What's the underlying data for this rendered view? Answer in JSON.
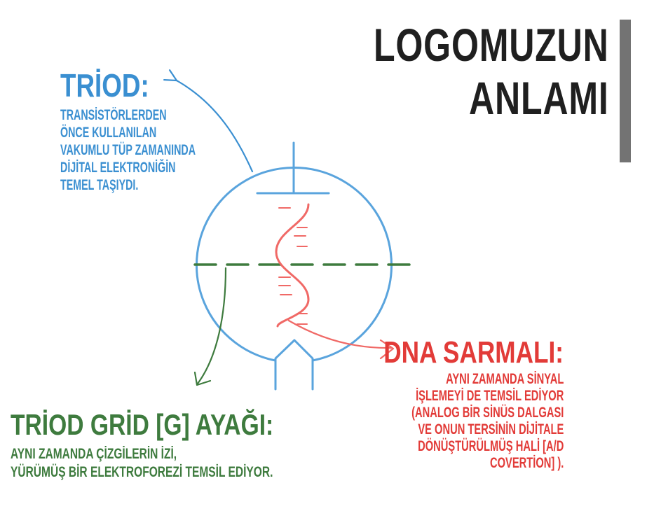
{
  "title": {
    "line1": "LOGOMUZUN",
    "line2": "ANLAMI"
  },
  "triod": {
    "heading": "TRİOD:",
    "lines": [
      "TRANSİSTÖRLERDEN",
      "ÖNCE KULLANILAN",
      "VAKUMLU TÜP ZAMANINDA",
      "DİJİTAL ELEKTRONİĞİN",
      "TEMEL TAŞIYDI."
    ]
  },
  "grid": {
    "heading": "TRİOD GRİD [G] AYAĞI:",
    "lines": [
      "AYNI ZAMANDA ÇİZGİLERİN İZİ,",
      "YÜRÜMÜŞ BİR ELEKTROFOREZİ TEMSİL EDİYOR."
    ]
  },
  "dna": {
    "heading": "DNA SARMALI:",
    "lines": [
      "AYNI ZAMANDA SİNYAL",
      "İŞLEMEYİ DE TEMSİL EDİYOR",
      "(ANALOG BİR SİNÜS DALGASI",
      "VE ONUN TERSİNİN DİJİTALE",
      "DÖNÜŞTÜRÜLMÜŞ HALİ [A/D",
      "COVERTİON] )."
    ]
  },
  "colors": {
    "blue": "#3a8fd1",
    "green": "#3e7b3e",
    "red": "#e23b38",
    "dark": "#1f1f1f",
    "bar": "#737373"
  }
}
